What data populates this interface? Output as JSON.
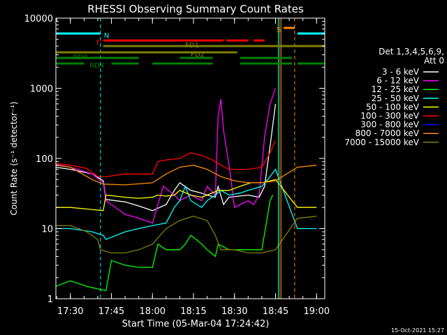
{
  "chart_data": {
    "type": "line",
    "title": "RHESSI Observing Summary Count Rates",
    "ylabel": "Count Rate (s⁻¹ detector⁻¹)",
    "xlabel": "Start Time (05-Mar-04 17:24:42)",
    "footer_date": "15-Oct-2021 15:27",
    "y_scale": "log",
    "ylim": [
      1,
      10000
    ],
    "xlim": [
      "17:24:42",
      "19:03:00"
    ],
    "x_ticks": [
      "17:30",
      "17:45",
      "18:00",
      "18:15",
      "18:30",
      "18:45",
      "19:00"
    ],
    "y_ticks": [
      {
        "value": 1,
        "label": "1"
      },
      {
        "value": 10,
        "label": "10"
      },
      {
        "value": 100,
        "label": "100"
      },
      {
        "value": 1000,
        "label": "1000"
      },
      {
        "value": 10000,
        "label": "10000"
      }
    ],
    "legend_header": [
      "Det 1,3,4,5,6,9,",
      "Att 0"
    ],
    "legend_placement": "right",
    "series": [
      {
        "name": "3 - 6 keV",
        "color": "#ffffff",
        "points": [
          [
            "17:24:42",
            75
          ],
          [
            "17:30",
            70
          ],
          [
            "17:38",
            60
          ],
          [
            "17:42",
            48
          ],
          [
            "17:43",
            26
          ],
          [
            "17:50",
            24
          ],
          [
            "17:55",
            21
          ],
          [
            "18:00",
            18
          ],
          [
            "18:05",
            22
          ],
          [
            "18:08",
            35
          ],
          [
            "18:10",
            45
          ],
          [
            "18:14",
            35
          ],
          [
            "18:18",
            32
          ],
          [
            "18:20",
            30
          ],
          [
            "18:23",
            28
          ],
          [
            "18:24",
            40
          ],
          [
            "18:26",
            22
          ],
          [
            "18:28",
            28
          ],
          [
            "18:35",
            30
          ],
          [
            "18:39",
            28
          ],
          [
            "18:41",
            40
          ],
          [
            "18:43",
            150
          ],
          [
            "18:45",
            600
          ]
        ]
      },
      {
        "name": "6 - 12 keV",
        "color": "#ff00ff",
        "points": [
          [
            "17:24:42",
            82
          ],
          [
            "17:30",
            75
          ],
          [
            "17:38",
            60
          ],
          [
            "17:42",
            45
          ],
          [
            "17:43",
            25
          ],
          [
            "17:50",
            16
          ],
          [
            "17:55",
            14
          ],
          [
            "18:00",
            12
          ],
          [
            "18:04",
            40
          ],
          [
            "18:08",
            30
          ],
          [
            "18:10",
            25
          ],
          [
            "18:14",
            30
          ],
          [
            "18:18",
            25
          ],
          [
            "18:20",
            40
          ],
          [
            "18:23",
            30
          ],
          [
            "18:24",
            400
          ],
          [
            "18:25",
            700
          ],
          [
            "18:26",
            250
          ],
          [
            "18:28",
            80
          ],
          [
            "18:30",
            20
          ],
          [
            "18:35",
            25
          ],
          [
            "18:37",
            22
          ],
          [
            "18:39",
            30
          ],
          [
            "18:41",
            200
          ],
          [
            "18:43",
            600
          ],
          [
            "18:45",
            1000
          ]
        ]
      },
      {
        "name": "12 - 25 keV",
        "color": "#00ff00",
        "points": [
          [
            "17:24:42",
            1.5
          ],
          [
            "17:30",
            1.8
          ],
          [
            "17:36",
            1.5
          ],
          [
            "17:43",
            1.3
          ],
          [
            "17:45",
            3.5
          ],
          [
            "17:50",
            3
          ],
          [
            "17:55",
            2.8
          ],
          [
            "18:00",
            2.8
          ],
          [
            "18:02",
            6
          ],
          [
            "18:05",
            5
          ],
          [
            "18:10",
            5
          ],
          [
            "18:12",
            6
          ],
          [
            "18:14",
            8
          ],
          [
            "18:16",
            7
          ],
          [
            "18:18",
            6
          ],
          [
            "18:20",
            5
          ],
          [
            "18:23",
            4
          ],
          [
            "18:24",
            6
          ],
          [
            "18:28",
            5
          ],
          [
            "18:35",
            5
          ],
          [
            "18:40",
            5
          ],
          [
            "18:43",
            25
          ],
          [
            "18:44",
            30
          ]
        ]
      },
      {
        "name": "25 - 50 keV",
        "color": "#00ffff",
        "points": [
          [
            "17:24:42",
            10
          ],
          [
            "17:30",
            10
          ],
          [
            "17:38",
            9
          ],
          [
            "17:42",
            8
          ],
          [
            "17:43",
            7
          ],
          [
            "17:50",
            9
          ],
          [
            "17:55",
            10
          ],
          [
            "18:00",
            11
          ],
          [
            "18:05",
            12
          ],
          [
            "18:08",
            20
          ],
          [
            "18:10",
            25
          ],
          [
            "18:12",
            40
          ],
          [
            "18:14",
            25
          ],
          [
            "18:18",
            20
          ],
          [
            "18:20",
            25
          ],
          [
            "18:23",
            30
          ],
          [
            "18:25",
            35
          ],
          [
            "18:28",
            30
          ],
          [
            "18:32",
            32
          ],
          [
            "18:35",
            35
          ],
          [
            "18:40",
            40
          ],
          [
            "18:43",
            55
          ],
          [
            "18:45",
            70
          ],
          [
            "18:53",
            10
          ],
          [
            "19:00",
            10
          ]
        ]
      },
      {
        "name": "50 - 100 keV",
        "color": "#ffff00",
        "points": [
          [
            "17:24:42",
            20
          ],
          [
            "17:30",
            20
          ],
          [
            "17:36",
            19
          ],
          [
            "17:42",
            18
          ],
          [
            "17:43",
            30
          ],
          [
            "17:50",
            28
          ],
          [
            "17:55",
            27
          ],
          [
            "18:00",
            28
          ],
          [
            "18:02",
            30
          ],
          [
            "18:05",
            29
          ],
          [
            "18:08",
            30
          ],
          [
            "18:10",
            35
          ],
          [
            "18:14",
            30
          ],
          [
            "18:18",
            28
          ],
          [
            "18:20",
            30
          ],
          [
            "18:24",
            35
          ],
          [
            "18:28",
            35
          ],
          [
            "18:32",
            40
          ],
          [
            "18:36",
            45
          ],
          [
            "18:40",
            45
          ],
          [
            "18:45",
            50
          ],
          [
            "18:53",
            20
          ],
          [
            "19:00",
            20
          ]
        ]
      },
      {
        "name": "100 - 300 keV",
        "color": "#ff0000",
        "points": [
          [
            "17:24:42",
            85
          ],
          [
            "17:30",
            80
          ],
          [
            "17:36",
            72
          ],
          [
            "17:40",
            55
          ],
          [
            "17:43",
            55
          ],
          [
            "17:50",
            60
          ],
          [
            "17:55",
            60
          ],
          [
            "18:00",
            60
          ],
          [
            "18:02",
            90
          ],
          [
            "18:05",
            95
          ],
          [
            "18:10",
            100
          ],
          [
            "18:14",
            120
          ],
          [
            "18:18",
            110
          ],
          [
            "18:22",
            95
          ],
          [
            "18:25",
            80
          ],
          [
            "18:28",
            70
          ],
          [
            "18:35",
            70
          ],
          [
            "18:40",
            75
          ],
          [
            "18:43",
            120
          ],
          [
            "18:45",
            180
          ]
        ]
      },
      {
        "name": "300 - 800 keV",
        "color": "#0000ff",
        "points": []
      },
      {
        "name": "800 - 7000 keV",
        "color": "#ff8c00",
        "points": [
          [
            "17:24:42",
            80
          ],
          [
            "17:30",
            75
          ],
          [
            "17:38",
            50
          ],
          [
            "17:42",
            43
          ],
          [
            "17:50",
            42
          ],
          [
            "18:00",
            45
          ],
          [
            "18:05",
            60
          ],
          [
            "18:10",
            75
          ],
          [
            "18:15",
            80
          ],
          [
            "18:20",
            70
          ],
          [
            "18:25",
            55
          ],
          [
            "18:30",
            48
          ],
          [
            "18:35",
            45
          ],
          [
            "18:40",
            45
          ],
          [
            "18:45",
            48
          ],
          [
            "18:53",
            75
          ],
          [
            "19:00",
            80
          ]
        ]
      },
      {
        "name": "7000 - 15000 keV",
        "color": "#808000",
        "points": [
          [
            "17:24:42",
            11
          ],
          [
            "17:30",
            11
          ],
          [
            "17:36",
            9
          ],
          [
            "17:40",
            7
          ],
          [
            "17:41",
            5
          ],
          [
            "17:45",
            4.5
          ],
          [
            "17:50",
            4.5
          ],
          [
            "17:55",
            5
          ],
          [
            "18:00",
            6
          ],
          [
            "18:05",
            10
          ],
          [
            "18:10",
            13
          ],
          [
            "18:15",
            15
          ],
          [
            "18:20",
            13
          ],
          [
            "18:23",
            8
          ],
          [
            "18:25",
            5
          ],
          [
            "18:30",
            5
          ],
          [
            "18:35",
            4.5
          ],
          [
            "18:40",
            4.5
          ],
          [
            "18:45",
            5
          ],
          [
            "18:53",
            14
          ],
          [
            "19:00",
            15
          ]
        ]
      }
    ],
    "flags": [
      {
        "label": "N",
        "color": "#00ffff",
        "rows": [
          [
            0,
            "17:24:42",
            "17:41:00"
          ],
          [
            0,
            "18:53:00",
            "19:03:00"
          ]
        ]
      },
      {
        "label": "F",
        "color": "#ff0000",
        "rows": [
          [
            1,
            "17:42:00",
            "18:26:00"
          ],
          [
            1,
            "18:27:00",
            "18:35:00"
          ],
          [
            1,
            "18:37:00",
            "18:41:00"
          ]
        ]
      },
      {
        "label": "S",
        "color": "#ff8c00",
        "rows": [
          [
            -1,
            "18:48:00",
            "18:52:00"
          ]
        ]
      },
      {
        "label": "FD1",
        "color": "#808000",
        "rows": [
          [
            2,
            "17:42:00",
            "19:03:00"
          ]
        ]
      },
      {
        "label": "FD2",
        "color": "#808000",
        "rows": [
          [
            3,
            "17:24:42",
            "18:31:00"
          ]
        ]
      },
      {
        "label": "RD0",
        "color": "#008000",
        "rows": [
          [
            4,
            "17:24:42",
            "17:55:00"
          ],
          [
            4,
            "18:10:00",
            "18:22:00"
          ],
          [
            4,
            "18:32:00",
            "18:51:00"
          ]
        ]
      },
      {
        "label": "RD4",
        "color": "#008000",
        "rows": [
          [
            5,
            "17:24:42",
            "17:35:00"
          ],
          [
            5,
            "17:45:00",
            "17:55:00"
          ],
          [
            5,
            "18:00:00",
            "18:22:00"
          ],
          [
            5,
            "18:32:00",
            "18:51:00"
          ],
          [
            5,
            "18:53:00",
            "19:03:00"
          ]
        ]
      }
    ],
    "vlines": [
      {
        "time": "17:24:42",
        "color": "#00ffff",
        "style": "solid"
      },
      {
        "time": "17:41:00",
        "color": "#00ffff",
        "style": "dashed"
      },
      {
        "time": "18:46:00",
        "color": "#00ffff",
        "style": "solid"
      },
      {
        "time": "18:46:30",
        "color": "#808000",
        "style": "solid"
      },
      {
        "time": "18:47:00",
        "color": "#ff8c00",
        "style": "solid"
      },
      {
        "time": "18:52:00",
        "color": "#ff8c00",
        "style": "dashed"
      },
      {
        "time": "19:03:00",
        "color": "#00ffff",
        "style": "dashed"
      }
    ]
  }
}
